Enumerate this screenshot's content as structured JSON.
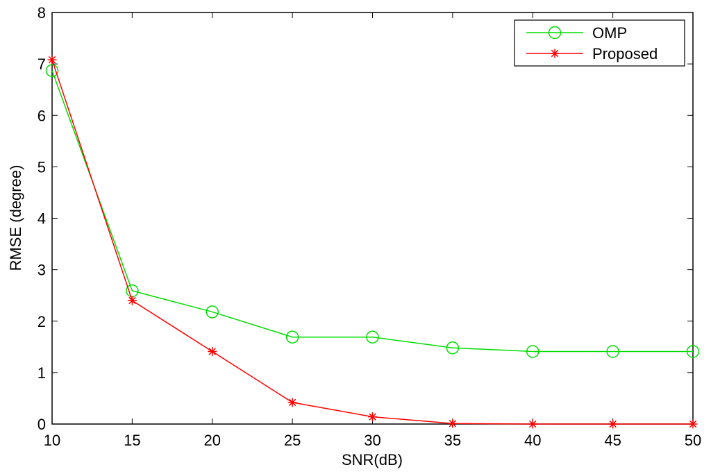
{
  "chart_data": {
    "type": "line",
    "xlabel": "SNR(dB)",
    "ylabel": "RMSE (degree)",
    "xlim": [
      10,
      50
    ],
    "ylim": [
      0,
      8
    ],
    "x_ticks": [
      10,
      15,
      20,
      25,
      30,
      35,
      40,
      45,
      50
    ],
    "y_ticks": [
      0,
      1,
      2,
      3,
      4,
      5,
      6,
      7,
      8
    ],
    "grid": false,
    "legend_position": "top-right",
    "x": [
      10,
      15,
      20,
      25,
      30,
      35,
      40,
      45,
      50
    ],
    "series": [
      {
        "name": "OMP",
        "color": "#00dd00",
        "marker": "circle",
        "values": [
          6.87,
          2.59,
          2.18,
          1.69,
          1.69,
          1.48,
          1.41,
          1.41,
          1.41
        ]
      },
      {
        "name": "Proposed",
        "color": "#ff0000",
        "marker": "asterisk",
        "values": [
          7.08,
          2.4,
          1.41,
          0.42,
          0.14,
          0.01,
          0.0,
          0.0,
          0.0
        ]
      }
    ]
  }
}
